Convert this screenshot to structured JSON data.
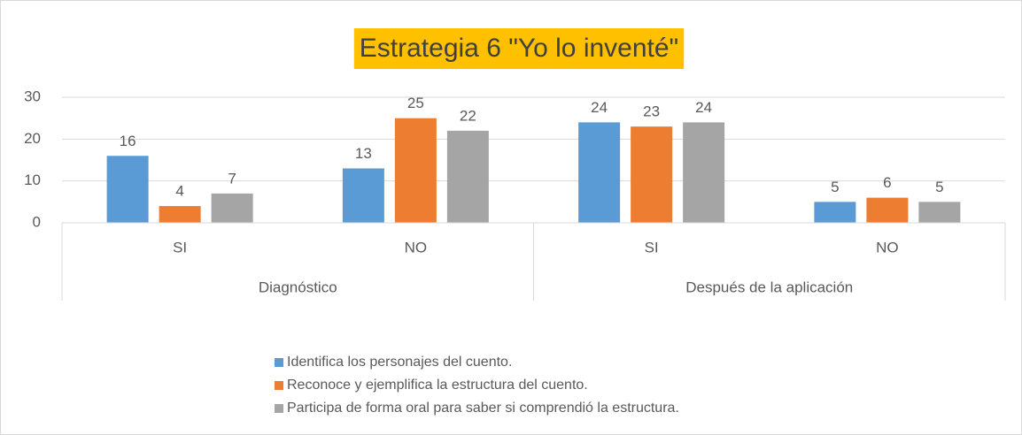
{
  "chart_data": {
    "type": "bar",
    "title": "Estrategia 6 \"Yo lo inventé\"",
    "title_background": "#FFC000",
    "category_groups": [
      {
        "label": "Diagnóstico",
        "categories": [
          "SI",
          "NO"
        ]
      },
      {
        "label": "Después de la aplicación",
        "categories": [
          "SI",
          "NO"
        ]
      }
    ],
    "series": [
      {
        "name": "Identifica los personajes del cuento.",
        "color": "#5B9BD5",
        "values": [
          16,
          13,
          24,
          5
        ]
      },
      {
        "name": "Reconoce y ejemplifica la estructura del cuento.",
        "color": "#ED7D31",
        "values": [
          4,
          25,
          23,
          6
        ]
      },
      {
        "name": "Participa de forma oral para saber si comprendió la estructura.",
        "color": "#A5A5A5",
        "values": [
          7,
          22,
          24,
          5
        ]
      }
    ],
    "ylim": [
      0,
      30
    ],
    "yticks": [
      0,
      10,
      20,
      30
    ],
    "grid": true,
    "data_labels": true,
    "legend": "bottom"
  }
}
